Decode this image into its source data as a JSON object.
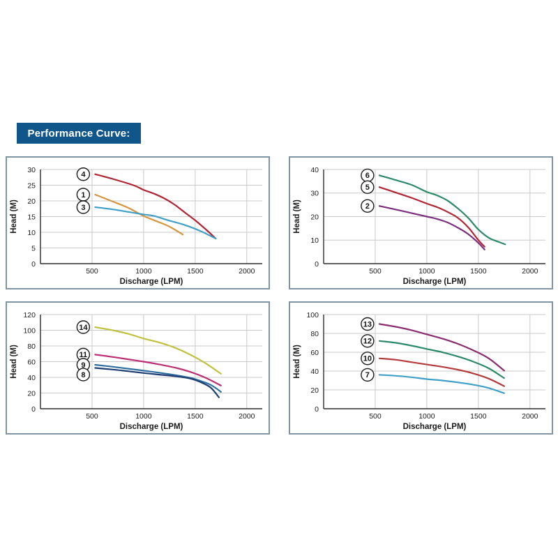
{
  "header": {
    "title": "Performance Curve:",
    "bg_color": "#11568a",
    "text_color": "#ffffff"
  },
  "chart_data": [
    {
      "name": "top-left-performance-chart",
      "type": "line",
      "xlabel": "Discharge (LPM)",
      "ylabel": "Head (M)",
      "xlim": [
        0,
        2150
      ],
      "ylim": [
        0,
        30
      ],
      "xticks": [
        500,
        1000,
        1500,
        2000
      ],
      "yticks": [
        0,
        5,
        10,
        15,
        20,
        25,
        30
      ],
      "grid": true,
      "legend_position": "circled-labels-left-of-curves",
      "series": [
        {
          "name": "4",
          "color": "#b12433",
          "label_pos": [
            415,
            28.5
          ],
          "points": [
            [
              530,
              28.5
            ],
            [
              700,
              27
            ],
            [
              900,
              25
            ],
            [
              1000,
              23.5
            ],
            [
              1100,
              22.3
            ],
            [
              1200,
              20.8
            ],
            [
              1300,
              18.8
            ],
            [
              1400,
              16.3
            ],
            [
              1500,
              13.8
            ],
            [
              1600,
              11
            ],
            [
              1700,
              8
            ]
          ]
        },
        {
          "name": "1",
          "color": "#d6953f",
          "label_pos": [
            415,
            22
          ],
          "points": [
            [
              530,
              22
            ],
            [
              700,
              19.8
            ],
            [
              850,
              17.8
            ],
            [
              1000,
              15.2
            ],
            [
              1150,
              13.2
            ],
            [
              1250,
              11.8
            ],
            [
              1380,
              9.3
            ]
          ]
        },
        {
          "name": "3",
          "color": "#3f9fc6",
          "label_pos": [
            415,
            18
          ],
          "points": [
            [
              530,
              18
            ],
            [
              700,
              17.3
            ],
            [
              850,
              16.5
            ],
            [
              1000,
              15.7
            ],
            [
              1100,
              15.2
            ],
            [
              1250,
              13.7
            ],
            [
              1400,
              12.3
            ],
            [
              1550,
              10.4
            ],
            [
              1700,
              8
            ]
          ]
        }
      ]
    },
    {
      "name": "top-right-performance-chart",
      "type": "line",
      "xlabel": "Discharge (LPM)",
      "ylabel": "Head (M)",
      "xlim": [
        0,
        2150
      ],
      "ylim": [
        0,
        40
      ],
      "xticks": [
        500,
        1000,
        1500,
        2000
      ],
      "yticks": [
        0,
        10,
        20,
        30,
        40
      ],
      "grid": true,
      "legend_position": "circled-labels-left-of-curves",
      "series": [
        {
          "name": "6",
          "color": "#2b8a68",
          "label_pos": [
            425,
            37.5
          ],
          "points": [
            [
              540,
              37.5
            ],
            [
              700,
              35.5
            ],
            [
              850,
              33.5
            ],
            [
              1000,
              30.5
            ],
            [
              1100,
              29
            ],
            [
              1200,
              26.8
            ],
            [
              1300,
              23.5
            ],
            [
              1400,
              19.5
            ],
            [
              1500,
              14.5
            ],
            [
              1600,
              11
            ],
            [
              1700,
              9.2
            ],
            [
              1760,
              8.2
            ]
          ]
        },
        {
          "name": "5",
          "color": "#b12433",
          "label_pos": [
            425,
            32.5
          ],
          "points": [
            [
              540,
              32.5
            ],
            [
              700,
              30.2
            ],
            [
              850,
              28
            ],
            [
              1000,
              25.5
            ],
            [
              1100,
              24
            ],
            [
              1200,
              22
            ],
            [
              1300,
              19.5
            ],
            [
              1400,
              15.5
            ],
            [
              1500,
              10
            ],
            [
              1560,
              7.2
            ]
          ]
        },
        {
          "name": "2",
          "color": "#7b2d7e",
          "label_pos": [
            425,
            24.5
          ],
          "points": [
            [
              540,
              24.5
            ],
            [
              700,
              23
            ],
            [
              850,
              21.5
            ],
            [
              1000,
              20
            ],
            [
              1100,
              19
            ],
            [
              1200,
              17.5
            ],
            [
              1300,
              15.3
            ],
            [
              1400,
              12.6
            ],
            [
              1500,
              8.8
            ],
            [
              1560,
              6
            ]
          ]
        }
      ]
    },
    {
      "name": "bottom-left-performance-chart",
      "type": "line",
      "xlabel": "Discharge (LPM)",
      "ylabel": "Head (M)",
      "xlim": [
        0,
        2150
      ],
      "ylim": [
        0,
        120
      ],
      "xticks": [
        500,
        1000,
        1500,
        2000
      ],
      "yticks": [
        0,
        20,
        40,
        60,
        80,
        100,
        120
      ],
      "grid": true,
      "legend_position": "circled-labels-left-of-curves",
      "series": [
        {
          "name": "14",
          "color": "#bfc13f",
          "label_pos": [
            415,
            104
          ],
          "points": [
            [
              530,
              104
            ],
            [
              700,
              100
            ],
            [
              850,
              95.5
            ],
            [
              1000,
              89.5
            ],
            [
              1150,
              84.5
            ],
            [
              1300,
              78
            ],
            [
              1450,
              69
            ],
            [
              1600,
              58
            ],
            [
              1750,
              44.5
            ]
          ]
        },
        {
          "name": "11",
          "color": "#bc2e74",
          "label_pos": [
            415,
            69
          ],
          "points": [
            [
              530,
              69
            ],
            [
              700,
              66
            ],
            [
              850,
              63
            ],
            [
              1000,
              60
            ],
            [
              1150,
              56.5
            ],
            [
              1300,
              52.5
            ],
            [
              1450,
              47
            ],
            [
              1600,
              39.5
            ],
            [
              1750,
              29.5
            ]
          ]
        },
        {
          "name": "9",
          "color": "#2e6f9f",
          "label_pos": [
            415,
            56
          ],
          "points": [
            [
              530,
              56
            ],
            [
              700,
              53.5
            ],
            [
              850,
              51
            ],
            [
              1000,
              48.5
            ],
            [
              1150,
              46
            ],
            [
              1300,
              43
            ],
            [
              1450,
              39.5
            ],
            [
              1550,
              35.5
            ],
            [
              1650,
              30.5
            ],
            [
              1750,
              21.5
            ]
          ]
        },
        {
          "name": "8",
          "color": "#1e3e72",
          "label_pos": [
            415,
            43.5
          ],
          "points": [
            [
              530,
              52
            ],
            [
              700,
              50
            ],
            [
              850,
              47.8
            ],
            [
              1000,
              45.5
            ],
            [
              1150,
              43.5
            ],
            [
              1300,
              41.5
            ],
            [
              1450,
              38.5
            ],
            [
              1550,
              34
            ],
            [
              1650,
              27
            ],
            [
              1730,
              14.5
            ]
          ]
        }
      ]
    },
    {
      "name": "bottom-right-performance-chart",
      "type": "line",
      "xlabel": "Discharge (LPM)",
      "ylabel": "Head (M)",
      "xlim": [
        0,
        2150
      ],
      "ylim": [
        0,
        100
      ],
      "xticks": [
        500,
        1000,
        1500,
        2000
      ],
      "yticks": [
        0,
        20,
        40,
        60,
        80,
        100
      ],
      "grid": true,
      "legend_position": "circled-labels-left-of-curves",
      "series": [
        {
          "name": "13",
          "color": "#8a2d6e",
          "label_pos": [
            425,
            90
          ],
          "points": [
            [
              540,
              90
            ],
            [
              700,
              87
            ],
            [
              850,
              83.5
            ],
            [
              1000,
              79
            ],
            [
              1150,
              74.5
            ],
            [
              1300,
              69
            ],
            [
              1450,
              62
            ],
            [
              1600,
              53.5
            ],
            [
              1750,
              40.5
            ]
          ]
        },
        {
          "name": "12",
          "color": "#2b8a68",
          "label_pos": [
            425,
            72
          ],
          "points": [
            [
              540,
              72
            ],
            [
              700,
              70
            ],
            [
              850,
              67
            ],
            [
              1000,
              63.5
            ],
            [
              1150,
              60
            ],
            [
              1300,
              55.5
            ],
            [
              1450,
              50
            ],
            [
              1600,
              43
            ],
            [
              1750,
              32.5
            ]
          ]
        },
        {
          "name": "10",
          "color": "#b43b3b",
          "label_pos": [
            425,
            53.5
          ],
          "points": [
            [
              540,
              53.5
            ],
            [
              700,
              52
            ],
            [
              850,
              49.5
            ],
            [
              1000,
              47
            ],
            [
              1150,
              44.5
            ],
            [
              1300,
              41.5
            ],
            [
              1450,
              37.5
            ],
            [
              1600,
              32
            ],
            [
              1750,
              24
            ]
          ]
        },
        {
          "name": "7",
          "color": "#3f9fc6",
          "label_pos": [
            425,
            36
          ],
          "points": [
            [
              540,
              36
            ],
            [
              700,
              35
            ],
            [
              850,
              33.5
            ],
            [
              1000,
              31.5
            ],
            [
              1150,
              30
            ],
            [
              1300,
              28
            ],
            [
              1450,
              25.5
            ],
            [
              1600,
              22
            ],
            [
              1750,
              16.5
            ]
          ]
        }
      ]
    }
  ],
  "style": {
    "grid_color": "#c9c9c9",
    "axis_color": "#2a2a2a",
    "tick_text_color": "#1a1a1a",
    "curve_width": 2.2,
    "panel_border_color": "#7e95a6"
  }
}
